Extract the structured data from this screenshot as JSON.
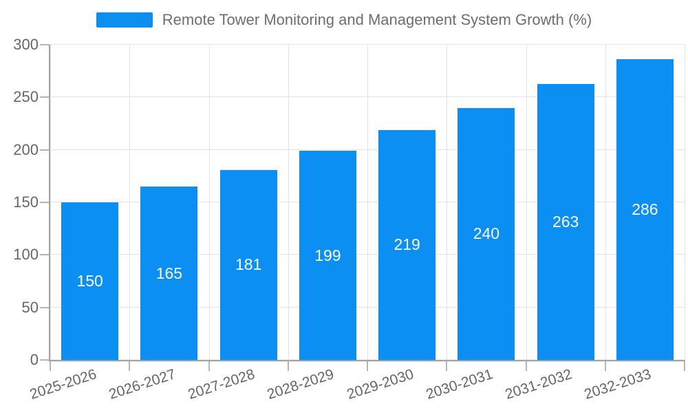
{
  "legend": {
    "label": "Remote Tower Monitoring and Management System Growth (%)",
    "swatch_color": "#0b8ff2"
  },
  "chart_data": {
    "type": "bar",
    "title": "Remote Tower Monitoring and Management System Growth (%)",
    "categories": [
      "2025-2026",
      "2026-2027",
      "2027-2028",
      "2028-2029",
      "2029-2030",
      "2030-2031",
      "2031-2032",
      "2032-2033"
    ],
    "values": [
      150,
      165,
      181,
      199,
      219,
      240,
      263,
      286
    ],
    "series_name": "Remote Tower Monitoring and Management System Growth (%)",
    "xlabel": "",
    "ylabel": "",
    "ylim": [
      0,
      300
    ],
    "yticks": [
      0,
      50,
      100,
      150,
      200,
      250,
      300
    ],
    "grid": true,
    "legend_position": "top-center",
    "x_tick_rotation_deg": -18,
    "bar_labels_inside": true,
    "colors": {
      "bar": "#0b8ff2",
      "bar_label": "#ffffff",
      "axis_text": "#666666",
      "legend_text": "#6e6e6e",
      "gridline": "#e4e4e4",
      "axis_line": "#a3a3a3",
      "tick": "#b5b5b5",
      "background": "#ffffff"
    }
  }
}
